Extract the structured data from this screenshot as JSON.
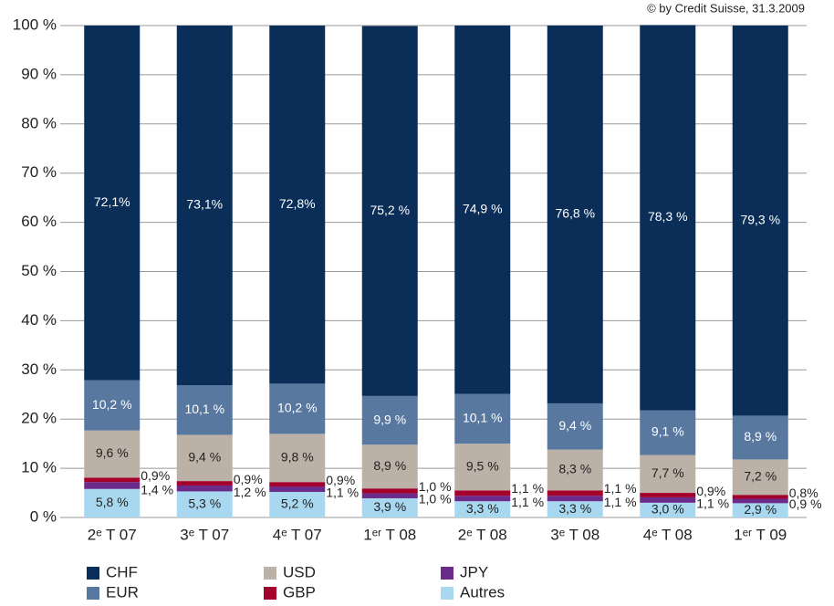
{
  "chart_data": {
    "type": "stacked_bar",
    "source": "© by Credit Suisse, 31.3.2009",
    "categories": [
      "2ᵉ T 07",
      "3ᵉ T 07",
      "4ᵉ T 07",
      "1ᵉʳ T 08",
      "2ᵉ T 08",
      "3ᵉ T 08",
      "4ᵉ T 08",
      "1ᵉʳ T 09"
    ],
    "series": [
      {
        "name": "Autres",
        "color": "#a8d8f0",
        "label_color": "#222222",
        "label_position": "inside",
        "values": [
          5.8,
          5.3,
          5.2,
          3.9,
          3.3,
          3.3,
          3.0,
          2.9
        ],
        "value_labels": [
          "5,8 %",
          "5,3 %",
          "5,2 %",
          "3,9 %",
          "3,3 %",
          "3,3 %",
          "3,0 %",
          "2,9 %"
        ]
      },
      {
        "name": "JPY",
        "color": "#6a2b8a",
        "label_color": "#222222",
        "label_position": "right-bottom",
        "values": [
          1.4,
          1.2,
          1.1,
          1.0,
          1.1,
          1.1,
          1.1,
          0.9
        ],
        "value_labels": [
          "1,4 %",
          "1,2 %",
          "1,1 %",
          "1,0 %",
          "1,1 %",
          "1,1 %",
          "1,1 %",
          "0,9 %"
        ]
      },
      {
        "name": "GBP",
        "color": "#a3002b",
        "label_color": "#222222",
        "label_position": "right-top",
        "values": [
          0.9,
          0.9,
          0.9,
          1.0,
          1.1,
          1.1,
          0.9,
          0.8
        ],
        "value_labels": [
          "0,9%",
          "0,9%",
          "0,9%",
          "1,0 %",
          "1,1 %",
          "1,1 %",
          "0,9%",
          "0,8%"
        ]
      },
      {
        "name": "USD",
        "color": "#bbb1a7",
        "label_color": "#222222",
        "label_position": "inside",
        "values": [
          9.6,
          9.4,
          9.8,
          8.9,
          9.5,
          8.3,
          7.7,
          7.2
        ],
        "value_labels": [
          "9,6 %",
          "9,4 %",
          "9,8 %",
          "8,9 %",
          "9,5 %",
          "8,3 %",
          "7,7 %",
          "7,2 %"
        ]
      },
      {
        "name": "EUR",
        "color": "#5878a0",
        "label_color": "#ffffff",
        "label_position": "inside",
        "values": [
          10.2,
          10.1,
          10.2,
          9.9,
          10.1,
          9.4,
          9.1,
          8.9
        ],
        "value_labels": [
          "10,2 %",
          "10,1 %",
          "10,2 %",
          "9,9 %",
          "10,1 %",
          "9,4 %",
          "9,1 %",
          "8,9 %"
        ]
      },
      {
        "name": "CHF",
        "color": "#0a2e58",
        "label_color": "#ffffff",
        "label_position": "inside",
        "values": [
          72.1,
          73.1,
          72.8,
          75.2,
          74.9,
          76.8,
          78.3,
          79.3
        ],
        "value_labels": [
          "72,1%",
          "73,1%",
          "72,8%",
          "75,2 %",
          "74,9 %",
          "76,8 %",
          "78,3 %",
          "79,3 %"
        ]
      }
    ],
    "ylim": [
      0,
      100
    ],
    "yticks": [
      {
        "value": 0,
        "label": "0 %"
      },
      {
        "value": 10,
        "label": "10 %"
      },
      {
        "value": 20,
        "label": "20 %"
      },
      {
        "value": 30,
        "label": "30 %"
      },
      {
        "value": 40,
        "label": "40 %"
      },
      {
        "value": 50,
        "label": "50 %"
      },
      {
        "value": 60,
        "label": "60 %"
      },
      {
        "value": 70,
        "label": "70 %"
      },
      {
        "value": 80,
        "label": "80 %"
      },
      {
        "value": 90,
        "label": "90 %"
      },
      {
        "value": 100,
        "label": "100 %"
      }
    ],
    "grid": true
  }
}
